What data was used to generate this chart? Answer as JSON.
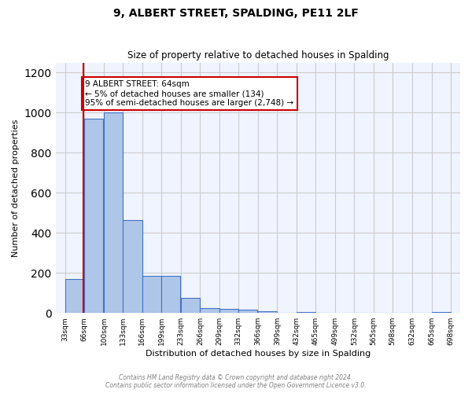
{
  "title": "9, ALBERT STREET, SPALDING, PE11 2LF",
  "subtitle": "Size of property relative to detached houses in Spalding",
  "xlabel": "Distribution of detached houses by size in Spalding",
  "ylabel": "Number of detached properties",
  "bar_edges": [
    33,
    66,
    100,
    133,
    166,
    199,
    233,
    266,
    299,
    332,
    366,
    399,
    432,
    465,
    499,
    532,
    565,
    598,
    632,
    665,
    698
  ],
  "bar_heights": [
    170,
    970,
    1000,
    465,
    185,
    185,
    75,
    25,
    20,
    15,
    10,
    0,
    5,
    0,
    0,
    0,
    0,
    0,
    0,
    5
  ],
  "bar_color": "#aec6e8",
  "bar_edgecolor": "#4472c4",
  "bar_linewidth": 0.8,
  "tick_labels": [
    "33sqm",
    "66sqm",
    "100sqm",
    "133sqm",
    "166sqm",
    "199sqm",
    "233sqm",
    "266sqm",
    "299sqm",
    "332sqm",
    "366sqm",
    "399sqm",
    "432sqm",
    "465sqm",
    "499sqm",
    "532sqm",
    "565sqm",
    "598sqm",
    "632sqm",
    "665sqm",
    "698sqm"
  ],
  "ylim": [
    0,
    1250
  ],
  "yticks": [
    0,
    200,
    400,
    600,
    800,
    1000,
    1200
  ],
  "property_line_x": 64,
  "property_line_color": "#cc0000",
  "annotation_text": "9 ALBERT STREET: 64sqm\n← 5% of detached houses are smaller (134)\n95% of semi-detached houses are larger (2,748) →",
  "annotation_box_color": "#cc0000",
  "grid_color": "#cccccc",
  "bg_color": "#f0f4ff",
  "footer_line1": "Contains HM Land Registry data © Crown copyright and database right 2024.",
  "footer_line2": "Contains public sector information licensed under the Open Government Licence v3.0."
}
